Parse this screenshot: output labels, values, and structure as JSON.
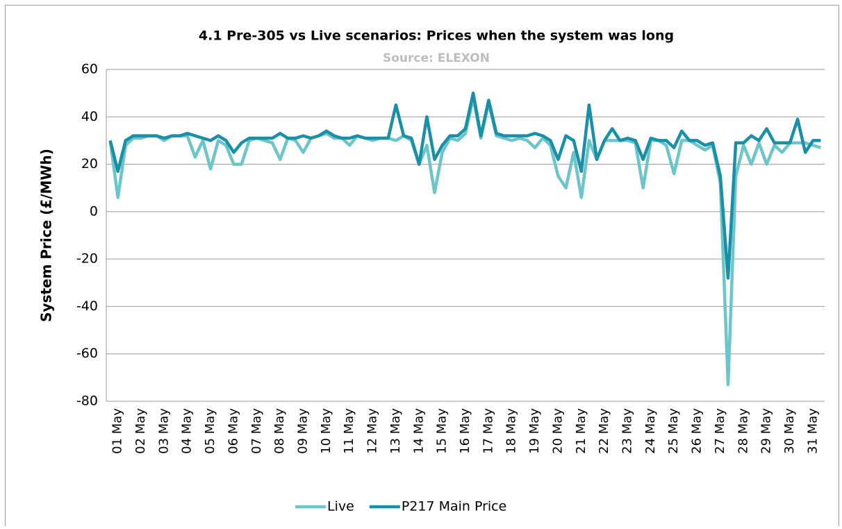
{
  "chart_data": {
    "type": "line",
    "title": "4.1 Pre-305 vs Live scenarios: Prices when the system was long",
    "subtitle": "Source: ELEXON",
    "y_label": "System Price (£/MWh)",
    "categories": [
      null,
      "01 May",
      null,
      null,
      "02 May",
      null,
      null,
      "03 May",
      null,
      null,
      "04 May",
      null,
      null,
      "05 May",
      null,
      null,
      "06 May",
      null,
      null,
      "07 May",
      null,
      null,
      "08 May",
      null,
      null,
      "09 May",
      null,
      null,
      "10 May",
      null,
      null,
      "11 May",
      null,
      null,
      "12 May",
      null,
      null,
      "13 May",
      null,
      null,
      "14 May",
      null,
      null,
      "15 May",
      null,
      null,
      "16 May",
      null,
      null,
      "17 May",
      null,
      null,
      "18 May",
      null,
      null,
      "19 May",
      null,
      null,
      "20 May",
      null,
      null,
      "21 May",
      null,
      null,
      "22 May",
      null,
      null,
      "23 May",
      null,
      null,
      "24 May",
      null,
      null,
      "25 May",
      null,
      null,
      "26 May",
      null,
      null,
      "27 May",
      null,
      null,
      "28 May",
      null,
      null,
      "29 May",
      null,
      null,
      "30 May",
      null,
      null,
      "31 May",
      null
    ],
    "series": [
      {
        "name": "Live",
        "color": "#6cc5c8",
        "values": [
          30,
          6,
          28,
          31,
          31,
          32,
          32,
          30,
          32,
          32,
          32,
          23,
          30,
          18,
          30,
          28,
          20,
          20,
          30,
          31,
          30,
          29,
          22,
          31,
          30,
          25,
          31,
          32,
          33,
          31,
          31,
          28,
          32,
          31,
          30,
          31,
          31,
          30,
          32,
          30,
          20,
          28,
          8,
          25,
          31,
          30,
          33,
          48,
          31,
          46,
          32,
          31,
          30,
          31,
          30,
          27,
          31,
          28,
          15,
          10,
          25,
          6,
          30,
          22,
          30,
          30,
          30,
          30,
          29,
          10,
          30,
          30,
          28,
          16,
          30,
          30,
          28,
          26,
          28,
          12,
          -73,
          15,
          28,
          20,
          29,
          20,
          28,
          25,
          29,
          29,
          29,
          28,
          27
        ]
      },
      {
        "name": "P217 Main Price",
        "color": "#1a8fa8",
        "values": [
          30,
          17,
          30,
          32,
          32,
          32,
          32,
          31,
          32,
          32,
          33,
          32,
          31,
          30,
          32,
          30,
          25,
          29,
          31,
          31,
          31,
          31,
          33,
          31,
          31,
          32,
          31,
          32,
          34,
          32,
          31,
          31,
          32,
          31,
          31,
          31,
          31,
          45,
          32,
          31,
          20,
          40,
          22,
          28,
          32,
          32,
          35,
          50,
          32,
          47,
          33,
          32,
          32,
          32,
          32,
          33,
          32,
          30,
          22,
          32,
          30,
          17,
          45,
          22,
          30,
          35,
          30,
          31,
          30,
          22,
          31,
          30,
          30,
          27,
          34,
          30,
          30,
          28,
          29,
          15,
          -28,
          29,
          29,
          32,
          30,
          35,
          29,
          29,
          29,
          39,
          25,
          30,
          30
        ]
      }
    ],
    "ylim": [
      -80,
      60
    ],
    "yticks": [
      -80,
      -60,
      -40,
      -20,
      0,
      20,
      40,
      60
    ],
    "grid": true,
    "legend": "bottom"
  }
}
